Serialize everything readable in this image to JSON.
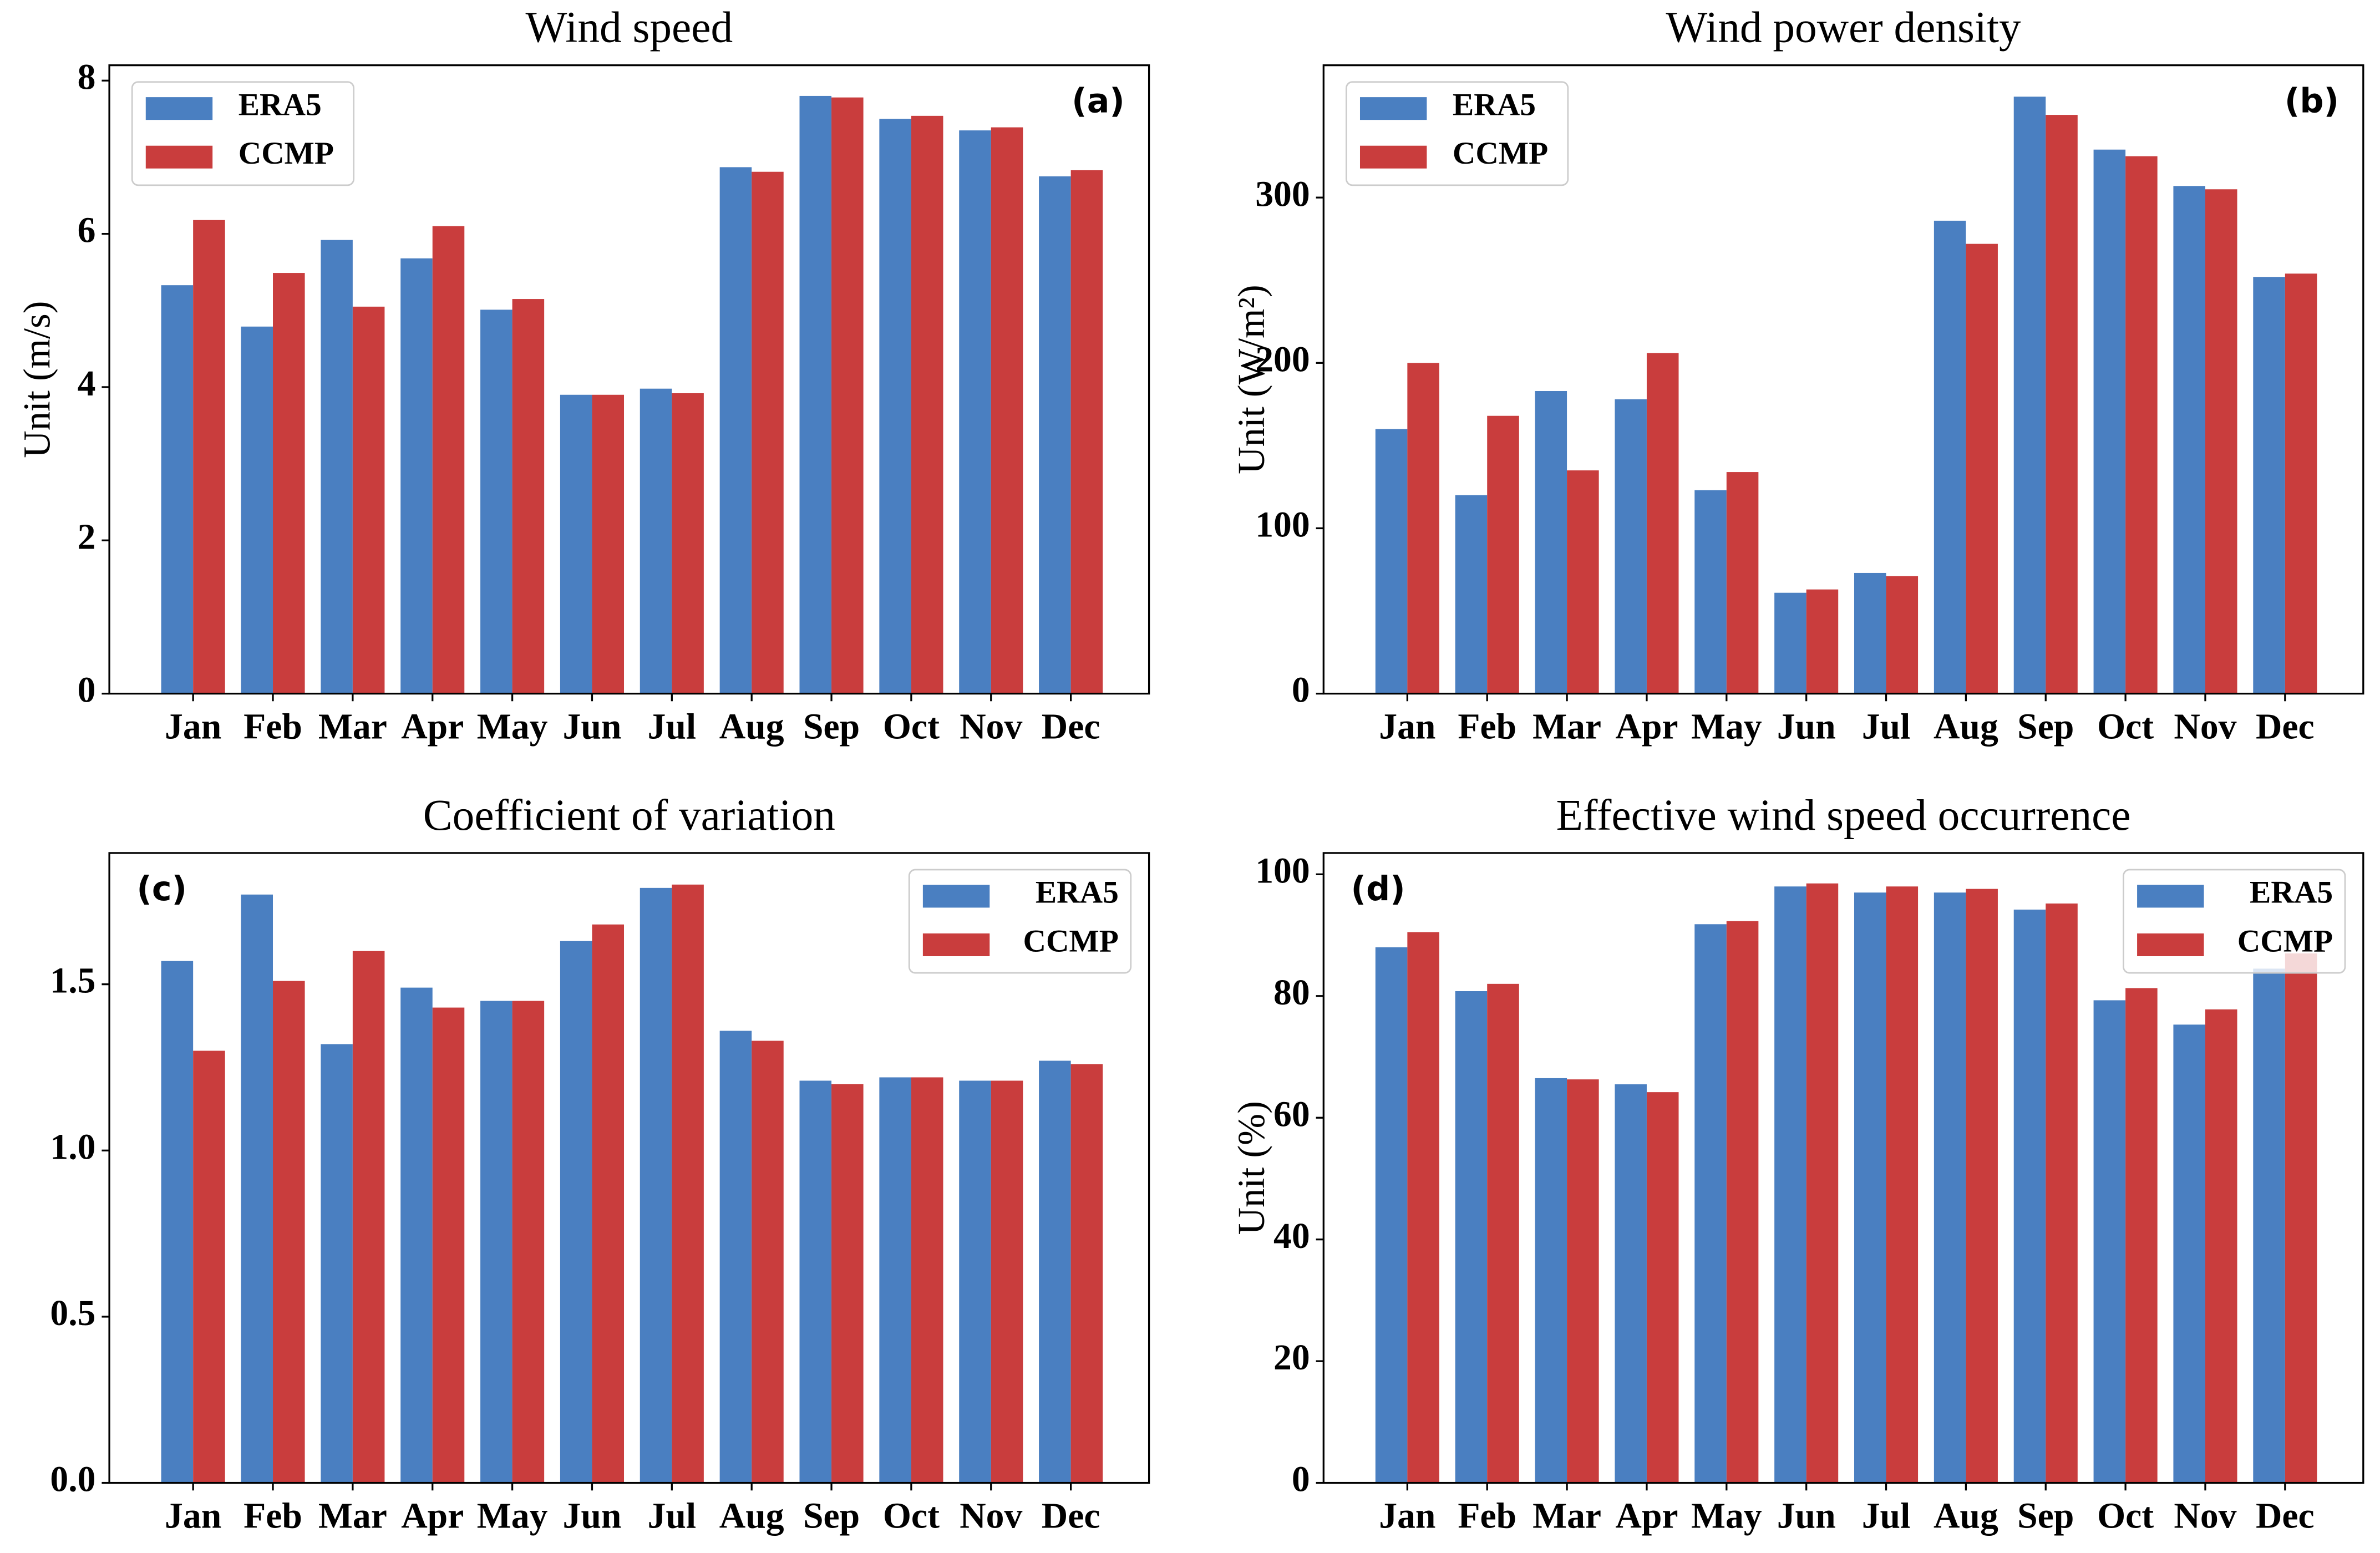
{
  "chart_data": [
    {
      "type": "bar",
      "title": "Wind speed",
      "ylabel": "Unit (m/s)",
      "panel_label": "(a)",
      "legend": "upper left",
      "categories": [
        "Jan",
        "Feb",
        "Mar",
        "Apr",
        "May",
        "Jun",
        "Jul",
        "Aug",
        "Sep",
        "Oct",
        "Nov",
        "Dec"
      ],
      "series": [
        {
          "name": "ERA5",
          "color": "#4a7fc1",
          "values": [
            5.33,
            4.79,
            5.92,
            5.68,
            5.01,
            3.9,
            3.98,
            6.87,
            7.8,
            7.5,
            7.35,
            6.75
          ]
        },
        {
          "name": "CCMP",
          "color": "#c93d3d",
          "values": [
            6.18,
            5.49,
            5.05,
            6.1,
            5.15,
            3.9,
            3.92,
            6.81,
            7.78,
            7.54,
            7.39,
            6.83
          ]
        }
      ],
      "ylim": [
        0,
        8.2
      ],
      "yticks": [
        0,
        2,
        4,
        6,
        8
      ]
    },
    {
      "type": "bar",
      "title": "Wind power density",
      "ylabel": "Unit (W/m²)",
      "panel_label": "(b)",
      "legend": "upper left",
      "categories": [
        "Jan",
        "Feb",
        "Mar",
        "Apr",
        "May",
        "Jun",
        "Jul",
        "Aug",
        "Sep",
        "Oct",
        "Nov",
        "Dec"
      ],
      "series": [
        {
          "name": "ERA5",
          "color": "#4a7fc1",
          "values": [
            160,
            120,
            183,
            178,
            123,
            61,
            73,
            286,
            361,
            329,
            307,
            252
          ]
        },
        {
          "name": "CCMP",
          "color": "#c93d3d",
          "values": [
            200,
            168,
            135,
            206,
            134,
            63,
            71,
            272,
            350,
            325,
            305,
            254
          ]
        }
      ],
      "ylim": [
        0,
        380
      ],
      "yticks": [
        0,
        100,
        200,
        300
      ]
    },
    {
      "type": "bar",
      "title": "Coefficient of variation",
      "panel_label": "(c)",
      "legend": "upper right",
      "categories": [
        "Jan",
        "Feb",
        "Mar",
        "Apr",
        "May",
        "Jun",
        "Jul",
        "Aug",
        "Sep",
        "Oct",
        "Nov",
        "Dec"
      ],
      "series": [
        {
          "name": "ERA5",
          "color": "#4a7fc1",
          "values": [
            1.57,
            1.77,
            1.32,
            1.49,
            1.45,
            1.63,
            1.79,
            1.36,
            1.21,
            1.22,
            1.21,
            1.27
          ]
        },
        {
          "name": "CCMP",
          "color": "#c93d3d",
          "values": [
            1.3,
            1.51,
            1.6,
            1.43,
            1.45,
            1.68,
            1.8,
            1.33,
            1.2,
            1.22,
            1.21,
            1.26
          ]
        }
      ],
      "ylim": [
        0,
        1.895
      ],
      "yticks": [
        {
          "value": 0,
          "label": "0.0"
        },
        0.5,
        {
          "value": 1,
          "label": "1.0"
        },
        1.5
      ]
    },
    {
      "type": "bar",
      "title": "Effective wind speed occurrence",
      "ylabel": "Unit (%)",
      "panel_label": "(d)",
      "legend": "upper right",
      "categories": [
        "Jan",
        "Feb",
        "Mar",
        "Apr",
        "May",
        "Jun",
        "Jul",
        "Aug",
        "Sep",
        "Oct",
        "Nov",
        "Dec"
      ],
      "series": [
        {
          "name": "ERA5",
          "color": "#4a7fc1",
          "values": [
            88,
            80.8,
            66.5,
            65.5,
            91.8,
            98,
            97,
            97,
            94.2,
            79.3,
            75.3,
            84.5
          ]
        },
        {
          "name": "CCMP",
          "color": "#c93d3d",
          "values": [
            90.5,
            82,
            66.3,
            64.2,
            92.3,
            98.5,
            98,
            97.6,
            95.2,
            81.3,
            77.8,
            87
          ]
        }
      ],
      "ylim": [
        0,
        103.5
      ],
      "yticks": [
        0,
        20,
        40,
        60,
        80,
        100
      ]
    }
  ]
}
